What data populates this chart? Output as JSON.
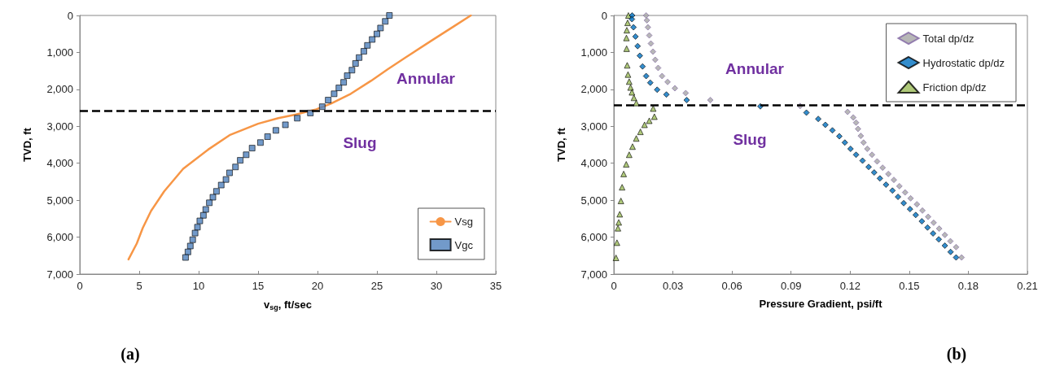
{
  "chart_data": [
    {
      "type": "line",
      "xlabel": "v$_{sg}$, ft/sec",
      "ylabel": "TVD, ft",
      "xlim": [
        0,
        35
      ],
      "xticks": [
        0,
        5,
        10,
        15,
        20,
        25,
        30,
        35
      ],
      "ylim": [
        7000,
        0
      ],
      "yticks": [
        0,
        {
          "value": 1000,
          "label": "1,000"
        },
        {
          "value": 2000,
          "label": "2,000"
        },
        {
          "value": 3000,
          "label": "3,000"
        },
        {
          "value": 4000,
          "label": "4,000"
        },
        {
          "value": 5000,
          "label": "5,000"
        },
        {
          "value": 6000,
          "label": "6,000"
        },
        {
          "value": 7000,
          "label": "7,000"
        }
      ],
      "grid": false,
      "legend": "bottom right",
      "series": [
        {
          "name": "Vsg",
          "marker": "none",
          "line_style": "solid",
          "color": "#f79646",
          "x": [
            32.9,
            31.5,
            29.6,
            27.4,
            25.9,
            24.5,
            22.8,
            21.1,
            19.9,
            18.2,
            16.7,
            15.0,
            12.6,
            10.8,
            8.7,
            7.1,
            6.0,
            5.3,
            4.8,
            4.1
          ],
          "values": [
            0,
            290,
            680,
            1140,
            1460,
            1770,
            2120,
            2390,
            2540,
            2680,
            2780,
            2930,
            3240,
            3630,
            4150,
            4760,
            5290,
            5750,
            6170,
            6600
          ]
        },
        {
          "name": "Vgc",
          "type": "scatter",
          "marker": "square",
          "color": "#4f81bd",
          "x": [
            26.05,
            25.7,
            25.3,
            25.0,
            24.6,
            24.2,
            23.9,
            23.5,
            23.2,
            22.9,
            22.5,
            22.2,
            21.8,
            21.4,
            20.9,
            20.4,
            19.4,
            18.3,
            17.3,
            16.5,
            15.8,
            15.2,
            14.5,
            14.0,
            13.5,
            13.1,
            12.6,
            12.3,
            11.9,
            11.5,
            11.2,
            10.9,
            10.6,
            10.4,
            10.1,
            9.9,
            9.7,
            9.5,
            9.3,
            9.1,
            8.9
          ],
          "values": [
            0,
            160,
            340,
            500,
            650,
            810,
            970,
            1140,
            1300,
            1480,
            1630,
            1810,
            1960,
            2120,
            2290,
            2470,
            2640,
            2780,
            2960,
            3110,
            3280,
            3440,
            3590,
            3770,
            3920,
            4100,
            4260,
            4440,
            4590,
            4760,
            4920,
            5070,
            5250,
            5410,
            5560,
            5730,
            5890,
            6070,
            6240,
            6400,
            6550
          ]
        }
      ],
      "ref_lines": [
        {
          "axis": "y",
          "value": 2580,
          "color": "#000000",
          "line_style": "dashed"
        }
      ],
      "annotations": [
        "Annular",
        "Slug",
        "(a)"
      ]
    },
    {
      "type": "scatter",
      "xlabel": "Pressure Gradient, psi/ft",
      "ylabel": "TVD, ft",
      "xlim": [
        0,
        0.21
      ],
      "xticks": [
        0,
        0.03,
        0.06,
        0.09,
        0.12,
        0.15,
        0.18,
        0.21
      ],
      "ylim": [
        7000,
        0
      ],
      "yticks": [
        0,
        {
          "value": 1000,
          "label": "1,000"
        },
        {
          "value": 2000,
          "label": "2,000"
        },
        {
          "value": 3000,
          "label": "3,000"
        },
        {
          "value": 4000,
          "label": "4,000"
        },
        {
          "value": 5000,
          "label": "5,000"
        },
        {
          "value": 6000,
          "label": "6,000"
        },
        {
          "value": 7000,
          "label": "7,000"
        }
      ],
      "grid": false,
      "legend": "top right",
      "series": [
        {
          "name": "Total dp/dz",
          "marker": "diamond",
          "color": "#a5a5a5",
          "x": [
            0.0164,
            0.0168,
            0.0173,
            0.018,
            0.0188,
            0.0199,
            0.021,
            0.0225,
            0.0245,
            0.0273,
            0.031,
            0.0365,
            0.049,
            0.0946,
            0.1187,
            0.1216,
            0.123,
            0.124,
            0.1254,
            0.1268,
            0.1287,
            0.1311,
            0.1337,
            0.1365,
            0.1394,
            0.1422,
            0.145,
            0.1479,
            0.1507,
            0.1539,
            0.1567,
            0.1596,
            0.1624,
            0.1652,
            0.1681,
            0.1709,
            0.1738,
            0.1766
          ],
          "values": [
            0,
            130,
            320,
            540,
            760,
            980,
            1200,
            1420,
            1640,
            1800,
            1970,
            2100,
            2290,
            2450,
            2610,
            2760,
            2900,
            3070,
            3260,
            3440,
            3610,
            3770,
            3950,
            4120,
            4290,
            4450,
            4620,
            4790,
            4950,
            5110,
            5280,
            5450,
            5610,
            5770,
            5940,
            6110,
            6270,
            6550
          ]
        },
        {
          "name": "Hydrostatic dp/dz",
          "marker": "diamond",
          "color": "#0070c0",
          "x": [
            0.0093,
            0.0092,
            0.01,
            0.011,
            0.0121,
            0.0132,
            0.0146,
            0.0164,
            0.0185,
            0.022,
            0.0267,
            0.037,
            0.0744,
            0.0978,
            0.1038,
            0.1074,
            0.111,
            0.1145,
            0.1173,
            0.1202,
            0.123,
            0.1263,
            0.1294,
            0.1322,
            0.1351,
            0.1382,
            0.1415,
            0.1443,
            0.1472,
            0.1504,
            0.1533,
            0.1564,
            0.1593,
            0.1621,
            0.165,
            0.1681,
            0.171,
            0.1738
          ],
          "values": [
            0,
            100,
            320,
            570,
            830,
            1090,
            1380,
            1640,
            1820,
            2010,
            2140,
            2290,
            2460,
            2630,
            2800,
            2960,
            3110,
            3270,
            3440,
            3610,
            3770,
            3930,
            4100,
            4250,
            4410,
            4580,
            4740,
            4910,
            5080,
            5240,
            5400,
            5570,
            5740,
            5900,
            6060,
            6230,
            6400,
            6550
          ]
        },
        {
          "name": "Friction dp/dz",
          "marker": "triangle",
          "color": "#9bbb59",
          "x": [
            0.0074,
            0.007,
            0.0066,
            0.0064,
            0.0065,
            0.0068,
            0.0072,
            0.0078,
            0.0085,
            0.0092,
            0.0102,
            0.0114,
            0.02,
            0.0206,
            0.018,
            0.0156,
            0.0135,
            0.0114,
            0.0095,
            0.0078,
            0.0063,
            0.005,
            0.0042,
            0.0036,
            0.003,
            0.0025,
            0.0021,
            0.0016,
            0.0011
          ],
          "values": [
            0,
            200,
            400,
            610,
            900,
            1350,
            1600,
            1790,
            1950,
            2080,
            2230,
            2370,
            2520,
            2740,
            2850,
            2960,
            3150,
            3330,
            3550,
            3770,
            4030,
            4290,
            4650,
            5020,
            5380,
            5600,
            5760,
            6150,
            6560
          ]
        }
      ],
      "ref_lines": [
        {
          "axis": "y",
          "value": 2425,
          "color": "#000000",
          "line_style": "dashed"
        }
      ],
      "annotations": [
        "Annular",
        "Slug",
        "(b)"
      ]
    }
  ]
}
